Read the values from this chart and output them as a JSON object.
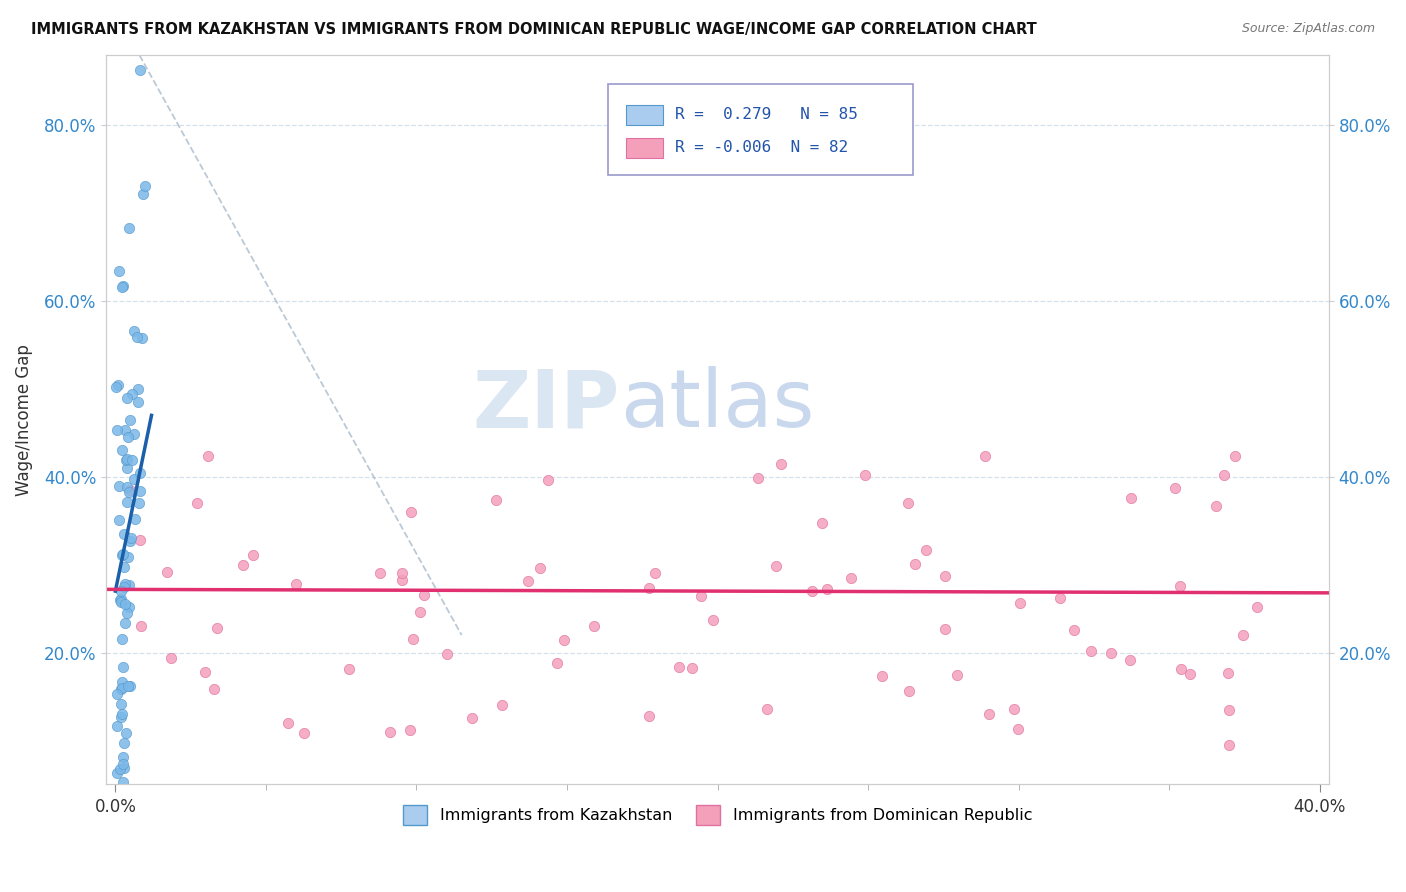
{
  "title": "IMMIGRANTS FROM KAZAKHSTAN VS IMMIGRANTS FROM DOMINICAN REPUBLIC WAGE/INCOME GAP CORRELATION CHART",
  "source": "Source: ZipAtlas.com",
  "ylabel": "Wage/Income Gap",
  "legend_label_blue": "Immigrants from Kazakhstan",
  "legend_label_pink": "Immigrants from Dominican Republic",
  "r_blue": "0.279",
  "n_blue": "85",
  "r_pink": "-0.006",
  "n_pink": "82",
  "watermark_zip": "ZIP",
  "watermark_atlas": "atlas",
  "blue_dot_color": "#7ab8e8",
  "blue_dot_edge": "#5599cc",
  "pink_dot_color": "#f4a0bb",
  "pink_dot_edge": "#e070a0",
  "trend_blue_color": "#1a5fa8",
  "trend_pink_color": "#e03070",
  "legend_blue_fill": "#aaccee",
  "legend_pink_fill": "#f4a0bb",
  "ref_line_color": "#aabbcc",
  "grid_color": "#d0dde8",
  "ytick_color": "#3388cc",
  "spine_color": "#cccccc",
  "title_color": "#111111",
  "source_color": "#777777",
  "ylabel_color": "#333333",
  "xlim": [
    -0.003,
    0.403
  ],
  "ylim": [
    0.05,
    0.88
  ],
  "ytick_vals": [
    0.2,
    0.4,
    0.6,
    0.8
  ],
  "ytick_labels": [
    "20.0%",
    "40.0%",
    "60.0%",
    "80.0%"
  ],
  "xtick_vals": [
    0.0,
    0.4
  ],
  "xtick_labels": [
    "0.0%",
    "40.0%"
  ]
}
